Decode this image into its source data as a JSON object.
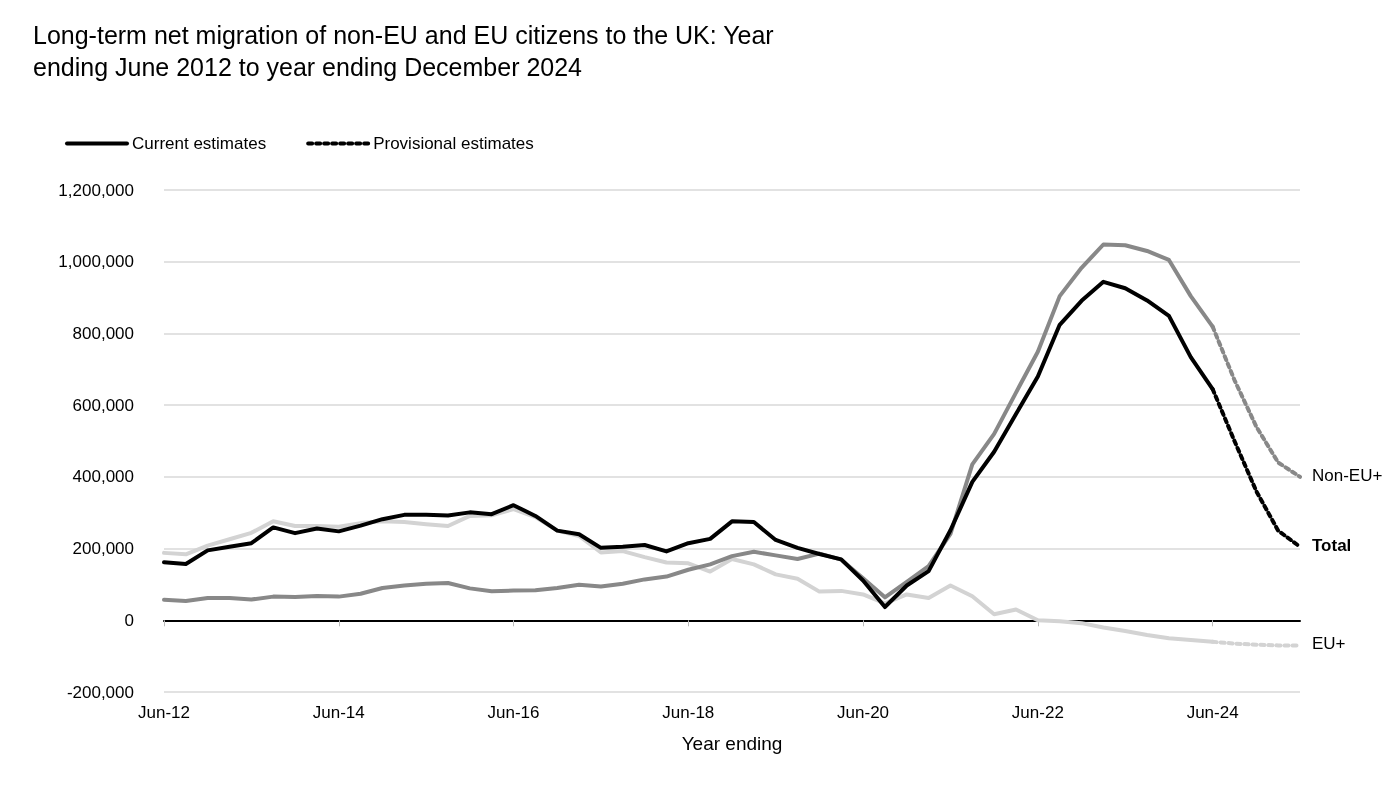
{
  "chart_data": {
    "type": "line",
    "title": "Long-term net migration of non-EU and EU citizens to the UK: Year ending June 2012 to year ending December 2024",
    "xlabel": "Year ending",
    "categories": [
      "Jun-12",
      null,
      null,
      null,
      null,
      null,
      null,
      null,
      "Jun-14",
      null,
      null,
      null,
      null,
      null,
      null,
      null,
      "Jun-16",
      null,
      null,
      null,
      null,
      null,
      null,
      null,
      "Jun-18",
      null,
      null,
      null,
      null,
      null,
      null,
      null,
      "Jun-20",
      null,
      null,
      null,
      null,
      null,
      null,
      null,
      "Jun-22",
      null,
      null,
      null,
      null,
      null,
      null,
      null,
      "Jun-24",
      null,
      null,
      null,
      null
    ],
    "series": [
      {
        "name": "Current estimates",
        "color": "#000000",
        "line_style": "solid",
        "values": [
          162000,
          157000,
          195000,
          205000,
          215000,
          259000,
          243000,
          256000,
          248000,
          264000,
          282000,
          294000,
          294000,
          292000,
          301000,
          296000,
          321000,
          291000,
          250000,
          240000,
          202000,
          205000,
          210000,
          192000,
          215000,
          227000,
          276000,
          274000,
          224000,
          202000,
          185000,
          170000,
          111000,
          37000,
          97000,
          137000,
          251000,
          386000,
          470000,
          575000,
          680000,
          824000,
          891000,
          944000,
          926000,
          892000,
          849000,
          734000,
          645000,
          null,
          null,
          null,
          null
        ]
      },
      {
        "name": "Provisional estimates",
        "color": "#000000",
        "line_style": "dotted",
        "values": [
          null,
          null,
          null,
          null,
          null,
          null,
          null,
          null,
          null,
          null,
          null,
          null,
          null,
          null,
          null,
          null,
          null,
          null,
          null,
          null,
          null,
          null,
          null,
          null,
          null,
          null,
          null,
          null,
          null,
          null,
          null,
          null,
          null,
          null,
          null,
          null,
          null,
          null,
          null,
          null,
          null,
          null,
          null,
          null,
          null,
          null,
          null,
          null,
          645000,
          500000,
          360000,
          250000,
          205000
        ]
      },
      {
        "color": "#888888",
        "line_style": "solid",
        "values": [
          57000,
          54000,
          62000,
          62000,
          58000,
          66000,
          65000,
          68000,
          66000,
          74000,
          90000,
          97000,
          102000,
          104000,
          89000,
          81000,
          83000,
          84000,
          90000,
          99000,
          94000,
          102000,
          114000,
          122000,
          141000,
          156000,
          179000,
          191000,
          181000,
          171000,
          186000,
          169000,
          117000,
          64000,
          107000,
          151000,
          241000,
          435000,
          520000,
          635000,
          749000,
          904000,
          983000,
          1048000,
          1046000,
          1030000,
          1005000,
          904000,
          819000,
          null,
          null,
          null,
          null
        ]
      },
      {
        "color": "#888888",
        "line_style": "dotted",
        "values": [
          null,
          null,
          null,
          null,
          null,
          null,
          null,
          null,
          null,
          null,
          null,
          null,
          null,
          null,
          null,
          null,
          null,
          null,
          null,
          null,
          null,
          null,
          null,
          null,
          null,
          null,
          null,
          null,
          null,
          null,
          null,
          null,
          null,
          null,
          null,
          null,
          null,
          null,
          null,
          null,
          null,
          null,
          null,
          null,
          null,
          null,
          null,
          null,
          819000,
          670000,
          540000,
          440000,
          400000
        ]
      },
      {
        "color": "#d3d3d3",
        "line_style": "solid",
        "values": [
          188000,
          184000,
          208000,
          226000,
          244000,
          276000,
          263000,
          263000,
          261000,
          271000,
          276000,
          274000,
          268000,
          263000,
          291000,
          293000,
          310000,
          288000,
          250000,
          235000,
          189000,
          193000,
          176000,
          161000,
          159000,
          136000,
          171000,
          156000,
          128000,
          116000,
          80000,
          82000,
          72000,
          47000,
          72000,
          62000,
          97000,
          67000,
          17000,
          30000,
          0,
          -3000,
          -8000,
          -20000,
          -30000,
          -41000,
          -50000,
          -55000,
          -60000,
          null,
          null,
          null,
          null
        ]
      },
      {
        "color": "#d3d3d3",
        "line_style": "dotted",
        "values": [
          null,
          null,
          null,
          null,
          null,
          null,
          null,
          null,
          null,
          null,
          null,
          null,
          null,
          null,
          null,
          null,
          null,
          null,
          null,
          null,
          null,
          null,
          null,
          null,
          null,
          null,
          null,
          null,
          null,
          null,
          null,
          null,
          null,
          null,
          null,
          null,
          null,
          null,
          null,
          null,
          null,
          null,
          null,
          null,
          null,
          null,
          null,
          null,
          -60000,
          -65000,
          -68000,
          -70000,
          -70000
        ]
      }
    ],
    "ylim": [
      -200000,
      1200000
    ],
    "yticks": [
      {
        "value": -200000,
        "label": "-200,000"
      },
      0,
      {
        "value": 200000,
        "label": "200,000"
      },
      {
        "value": 400000,
        "label": "400,000"
      },
      {
        "value": 600000,
        "label": "600,000"
      },
      {
        "value": 800000,
        "label": "800,000"
      },
      {
        "value": 1000000,
        "label": "1,000,000"
      },
      {
        "value": 1200000,
        "label": "1,200,000"
      }
    ],
    "annotations": [
      "Total",
      "Non-EU+",
      "EU+"
    ],
    "grid": "y",
    "legend": "top left",
    "marker": "none"
  }
}
